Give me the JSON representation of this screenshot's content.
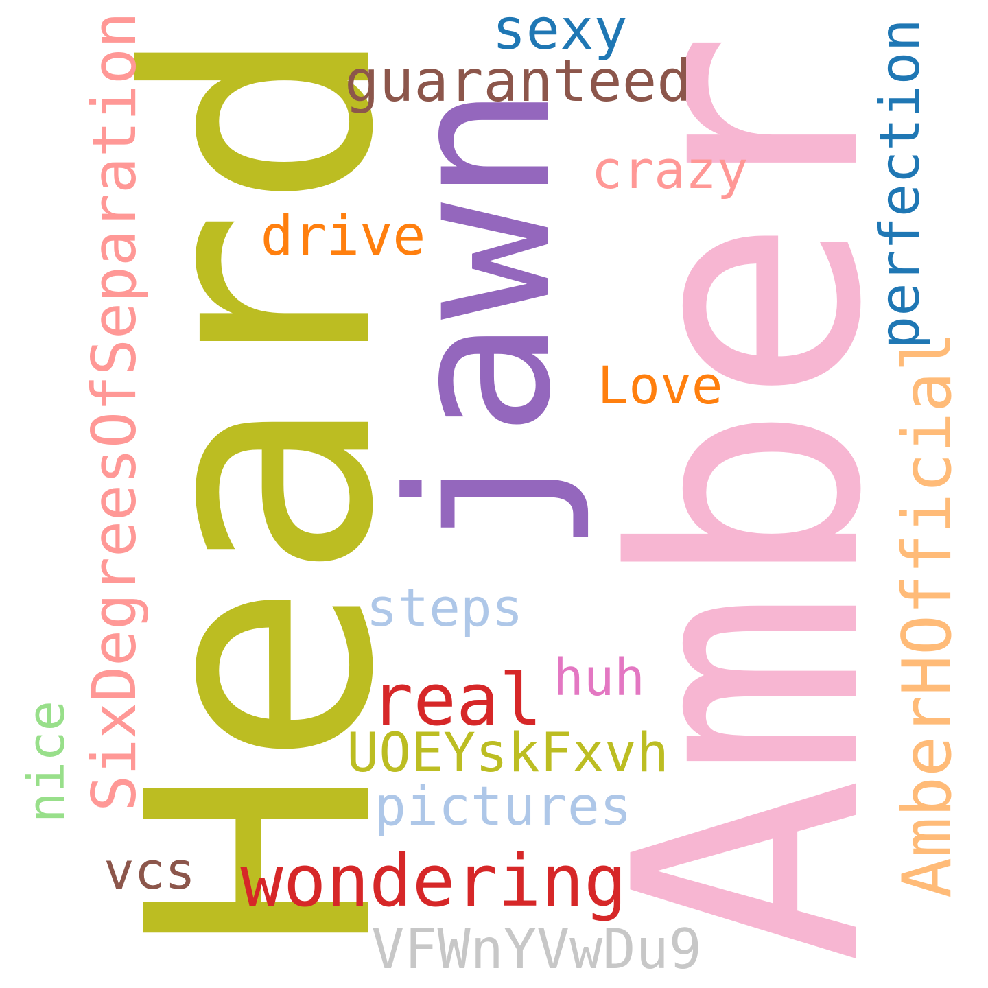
{
  "words": {
    "heard": {
      "text": "Heard",
      "color": "#bcbd22"
    },
    "amber": {
      "text": "Amber",
      "color": "#f7b6d2"
    },
    "jawn": {
      "text": "jawn",
      "color": "#9467bd"
    },
    "sixdegrees": {
      "text": "SixDegreesOfSeparation",
      "color": "#ff9896"
    },
    "amberhofficial": {
      "text": "AmberHOfficial",
      "color": "#ffbb78"
    },
    "perfection": {
      "text": "perfection",
      "color": "#1f77b4"
    },
    "guaranteed": {
      "text": "guaranteed",
      "color": "#8c564b"
    },
    "sexy": {
      "text": "sexy",
      "color": "#1f77b4"
    },
    "crazy": {
      "text": "crazy",
      "color": "#ff9896"
    },
    "drive": {
      "text": "drive",
      "color": "#ff7f0e"
    },
    "love": {
      "text": "Love",
      "color": "#ff7f0e"
    },
    "steps": {
      "text": "steps",
      "color": "#aec7e8"
    },
    "huh": {
      "text": "huh",
      "color": "#e377c2"
    },
    "real": {
      "text": "real",
      "color": "#d62728"
    },
    "uoeyskfxvh": {
      "text": "UOEYskFxvh",
      "color": "#bcbd22"
    },
    "pictures": {
      "text": "pictures",
      "color": "#aec7e8"
    },
    "nice": {
      "text": "nice",
      "color": "#98df8a"
    },
    "vcs": {
      "text": "vcs",
      "color": "#8c564b"
    },
    "wondering": {
      "text": "wondering",
      "color": "#d62728"
    },
    "vfwnyvwdu9": {
      "text": "VFWnYVwDu9",
      "color": "#c7c7c7"
    }
  }
}
